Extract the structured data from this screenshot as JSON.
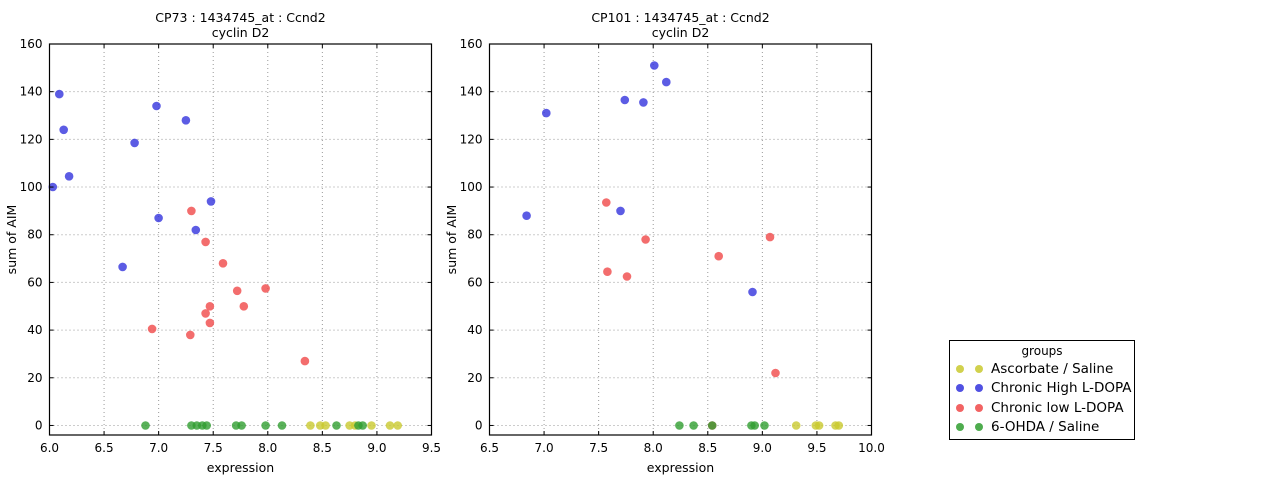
{
  "figure": {
    "background": "#ffffff",
    "text_color": "#000000",
    "grid_color": "#999999"
  },
  "legend": {
    "title": "groups",
    "entries": [
      {
        "label": "Ascorbate / Saline",
        "color": "#c9c92e"
      },
      {
        "label": "Chronic High L-DOPA",
        "color": "#3333dd"
      },
      {
        "label": "Chronic low L-DOPA",
        "color": "#f04848"
      },
      {
        "label": "6-OHDA / Saline",
        "color": "#2f9e2f"
      }
    ]
  },
  "chart_data": [
    {
      "type": "scatter",
      "title": "CP73 : 1434745_at : Ccnd2",
      "subtitle": "cyclin D2",
      "xlabel": "expression",
      "ylabel": "sum of AIM",
      "xlim": [
        6.0,
        9.5
      ],
      "ylim": [
        -4,
        160
      ],
      "grid": true,
      "legend_position": "outside-right",
      "xticks": [
        6.0,
        6.5,
        7.0,
        7.5,
        8.0,
        8.5,
        9.0,
        9.5
      ],
      "xtick_labels": [
        "6.0",
        "6.5",
        "7.0",
        "7.5",
        "8.0",
        "8.5",
        "9.0",
        "9.5"
      ],
      "yticks": [
        0,
        20,
        40,
        60,
        80,
        100,
        120,
        140,
        160
      ],
      "ytick_labels": [
        "0",
        "20",
        "40",
        "60",
        "80",
        "100",
        "120",
        "140",
        "160"
      ],
      "series": [
        {
          "name": "Ascorbate / Saline",
          "color": "#c9c92e",
          "points": [
            [
              8.39,
              0
            ],
            [
              8.48,
              0
            ],
            [
              8.53,
              0
            ],
            [
              8.75,
              0
            ],
            [
              8.8,
              0
            ],
            [
              8.95,
              0
            ],
            [
              9.12,
              0
            ],
            [
              9.19,
              0
            ]
          ]
        },
        {
          "name": "Chronic High L-DOPA",
          "color": "#3333dd",
          "points": [
            [
              6.03,
              100
            ],
            [
              6.09,
              139
            ],
            [
              6.13,
              124
            ],
            [
              6.18,
              104.5
            ],
            [
              6.67,
              66.5
            ],
            [
              6.78,
              118.5
            ],
            [
              6.98,
              134
            ],
            [
              7.0,
              87
            ],
            [
              7.25,
              128
            ],
            [
              7.34,
              82
            ],
            [
              7.48,
              94
            ]
          ]
        },
        {
          "name": "Chronic low L-DOPA",
          "color": "#f04848",
          "points": [
            [
              6.94,
              40.5
            ],
            [
              7.29,
              38
            ],
            [
              7.3,
              90
            ],
            [
              7.43,
              77
            ],
            [
              7.43,
              47
            ],
            [
              7.47,
              50
            ],
            [
              7.47,
              43
            ],
            [
              7.59,
              68
            ],
            [
              7.72,
              56.5
            ],
            [
              7.78,
              50
            ],
            [
              7.98,
              57.5
            ],
            [
              8.34,
              27
            ]
          ]
        },
        {
          "name": "6-OHDA / Saline",
          "color": "#2f9e2f",
          "points": [
            [
              6.88,
              0
            ],
            [
              7.3,
              0
            ],
            [
              7.35,
              0
            ],
            [
              7.4,
              0
            ],
            [
              7.44,
              0
            ],
            [
              7.71,
              0
            ],
            [
              7.76,
              0
            ],
            [
              7.98,
              0
            ],
            [
              8.13,
              0
            ],
            [
              8.63,
              0
            ],
            [
              8.83,
              0
            ],
            [
              8.87,
              0
            ]
          ]
        }
      ]
    },
    {
      "type": "scatter",
      "title": "CP101 : 1434745_at : Ccnd2",
      "subtitle": "cyclin D2",
      "xlabel": "expression",
      "ylabel": "sum of AIM",
      "xlim": [
        6.5,
        10.0
      ],
      "ylim": [
        -4,
        160
      ],
      "grid": true,
      "legend_position": "outside-right",
      "xticks": [
        6.5,
        7.0,
        7.5,
        8.0,
        8.5,
        9.0,
        9.5,
        10.0
      ],
      "xtick_labels": [
        "6.5",
        "7.0",
        "7.5",
        "8.0",
        "8.5",
        "9.0",
        "9.5",
        "10.0"
      ],
      "yticks": [
        0,
        20,
        40,
        60,
        80,
        100,
        120,
        140,
        160
      ],
      "ytick_labels": [
        "0",
        "20",
        "40",
        "60",
        "80",
        "100",
        "120",
        "140",
        "160"
      ],
      "series": [
        {
          "name": "Ascorbate / Saline",
          "color": "#c9c92e",
          "points": [
            [
              9.31,
              0
            ],
            [
              9.49,
              0
            ],
            [
              9.52,
              0
            ],
            [
              9.67,
              0
            ],
            [
              9.7,
              0
            ]
          ]
        },
        {
          "name": "Chronic High L-DOPA",
          "color": "#3333dd",
          "points": [
            [
              6.84,
              88
            ],
            [
              7.02,
              131
            ],
            [
              7.7,
              90
            ],
            [
              7.74,
              136.5
            ],
            [
              7.91,
              135.5
            ],
            [
              8.01,
              151
            ],
            [
              8.12,
              144
            ],
            [
              8.91,
              56
            ]
          ]
        },
        {
          "name": "Chronic low L-DOPA",
          "color": "#f04848",
          "points": [
            [
              7.57,
              93.5
            ],
            [
              7.58,
              64.5
            ],
            [
              7.76,
              62.5
            ],
            [
              7.93,
              78
            ],
            [
              8.54,
              0
            ],
            [
              8.6,
              71
            ],
            [
              9.07,
              79
            ],
            [
              9.12,
              22
            ]
          ]
        },
        {
          "name": "6-OHDA / Saline",
          "color": "#2f9e2f",
          "points": [
            [
              8.24,
              0
            ],
            [
              8.37,
              0
            ],
            [
              8.54,
              0
            ],
            [
              8.9,
              0
            ],
            [
              8.93,
              0
            ],
            [
              9.02,
              0
            ]
          ]
        }
      ]
    }
  ]
}
